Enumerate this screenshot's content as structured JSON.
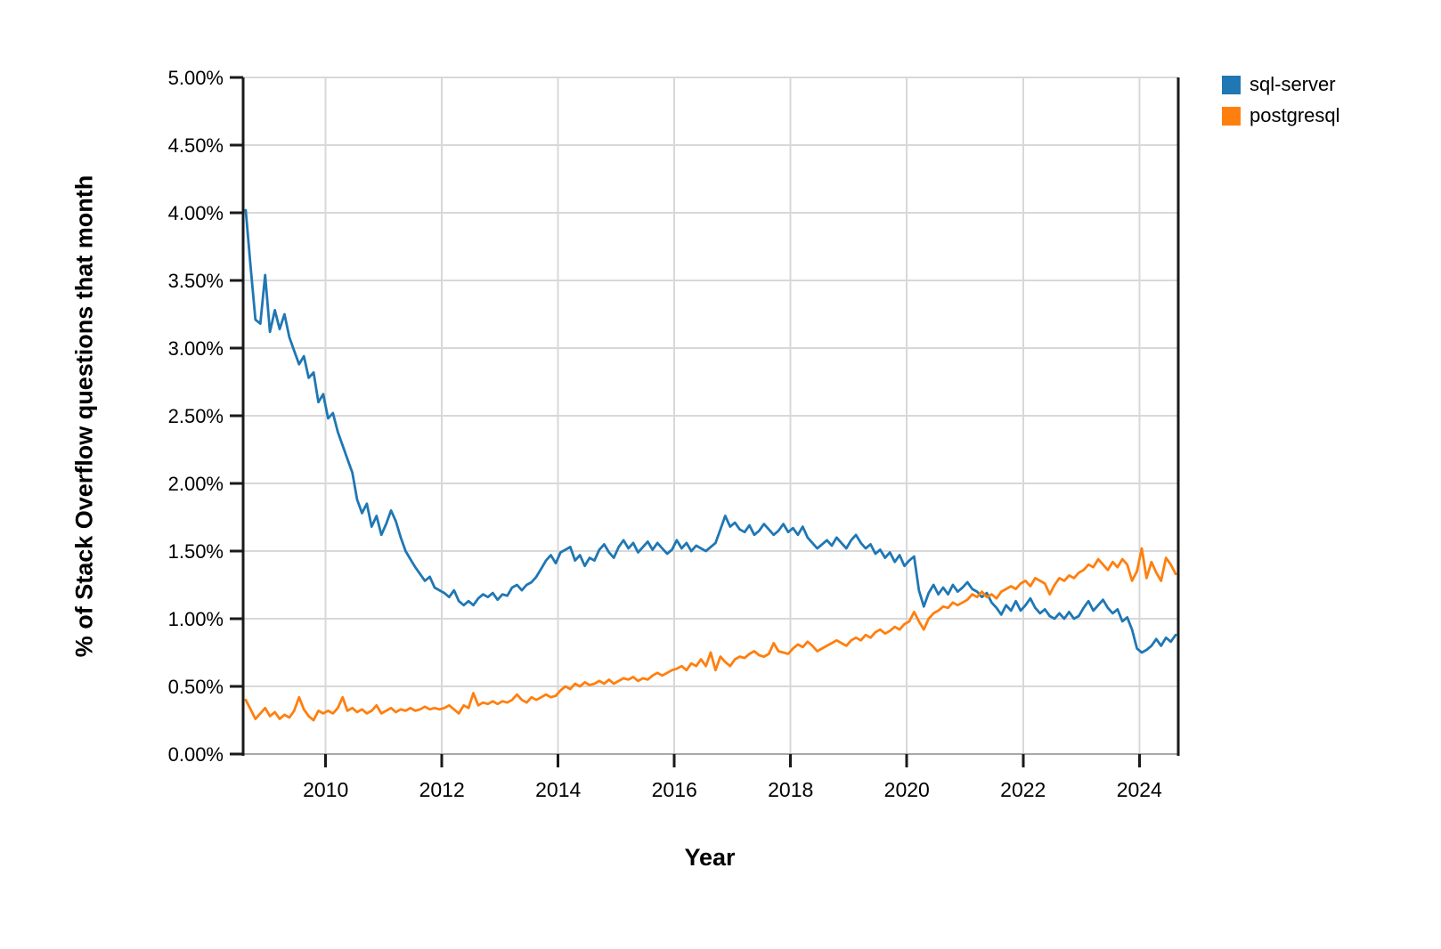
{
  "chart_data": {
    "type": "line",
    "xlabel": "Year",
    "ylabel": "% of Stack Overflow questions that month",
    "xlim": [
      2008.58,
      2024.67
    ],
    "ylim": [
      0,
      5
    ],
    "grid": true,
    "legend_position": "outside-top-right",
    "x_start": "2008-08",
    "x_step": "month",
    "xtick_values": [
      2010,
      2012,
      2014,
      2016,
      2018,
      2020,
      2022,
      2024
    ],
    "xtick_labels": [
      "2010",
      "2012",
      "2014",
      "2016",
      "2018",
      "2020",
      "2022",
      "2024"
    ],
    "ytick_values": [
      0,
      0.5,
      1,
      1.5,
      2,
      2.5,
      3,
      3.5,
      4,
      4.5,
      5
    ],
    "ytick_labels": [
      "0.00%",
      "0.50%",
      "1.00%",
      "1.50%",
      "2.00%",
      "2.50%",
      "3.00%",
      "3.50%",
      "4.00%",
      "4.50%",
      "5.00%"
    ],
    "colors": {
      "grid": "#d8d8d8",
      "zero_line": "#a8a8a8",
      "frame": "#1a1a1a",
      "text": "#000000"
    },
    "series": [
      {
        "name": "sql-server",
        "color": "#1f77b4",
        "values": [
          4.02,
          3.6,
          3.21,
          3.18,
          3.54,
          3.12,
          3.28,
          3.14,
          3.25,
          3.08,
          2.98,
          2.88,
          2.94,
          2.78,
          2.82,
          2.6,
          2.66,
          2.48,
          2.52,
          2.38,
          2.28,
          2.18,
          2.08,
          1.88,
          1.78,
          1.85,
          1.68,
          1.76,
          1.62,
          1.7,
          1.8,
          1.72,
          1.6,
          1.5,
          1.44,
          1.38,
          1.33,
          1.28,
          1.31,
          1.23,
          1.21,
          1.19,
          1.16,
          1.21,
          1.13,
          1.1,
          1.13,
          1.1,
          1.15,
          1.18,
          1.16,
          1.19,
          1.14,
          1.18,
          1.17,
          1.23,
          1.25,
          1.21,
          1.25,
          1.27,
          1.31,
          1.37,
          1.43,
          1.47,
          1.41,
          1.49,
          1.51,
          1.53,
          1.43,
          1.47,
          1.39,
          1.45,
          1.43,
          1.51,
          1.55,
          1.49,
          1.45,
          1.53,
          1.58,
          1.52,
          1.56,
          1.49,
          1.53,
          1.57,
          1.51,
          1.56,
          1.52,
          1.48,
          1.51,
          1.58,
          1.52,
          1.56,
          1.5,
          1.54,
          1.52,
          1.5,
          1.53,
          1.56,
          1.66,
          1.76,
          1.68,
          1.71,
          1.66,
          1.64,
          1.69,
          1.62,
          1.65,
          1.7,
          1.66,
          1.62,
          1.65,
          1.7,
          1.64,
          1.67,
          1.62,
          1.68,
          1.6,
          1.56,
          1.52,
          1.55,
          1.58,
          1.54,
          1.6,
          1.56,
          1.52,
          1.58,
          1.62,
          1.56,
          1.52,
          1.55,
          1.48,
          1.51,
          1.45,
          1.49,
          1.42,
          1.47,
          1.39,
          1.43,
          1.46,
          1.21,
          1.09,
          1.19,
          1.25,
          1.18,
          1.23,
          1.18,
          1.25,
          1.2,
          1.23,
          1.27,
          1.22,
          1.2,
          1.16,
          1.19,
          1.12,
          1.08,
          1.03,
          1.1,
          1.06,
          1.13,
          1.06,
          1.1,
          1.15,
          1.08,
          1.04,
          1.07,
          1.02,
          1.0,
          1.04,
          1.0,
          1.05,
          1.0,
          1.02,
          1.08,
          1.13,
          1.06,
          1.1,
          1.14,
          1.08,
          1.04,
          1.07,
          0.98,
          1.01,
          0.92,
          0.78,
          0.75,
          0.77,
          0.8,
          0.85,
          0.8,
          0.86,
          0.83,
          0.88
        ]
      },
      {
        "name": "postgresql",
        "color": "#ff7f0e",
        "values": [
          0.4,
          0.33,
          0.26,
          0.3,
          0.34,
          0.28,
          0.31,
          0.26,
          0.29,
          0.27,
          0.32,
          0.42,
          0.33,
          0.28,
          0.25,
          0.32,
          0.3,
          0.32,
          0.3,
          0.34,
          0.42,
          0.32,
          0.34,
          0.31,
          0.33,
          0.3,
          0.32,
          0.36,
          0.3,
          0.32,
          0.34,
          0.31,
          0.33,
          0.32,
          0.34,
          0.32,
          0.33,
          0.35,
          0.33,
          0.34,
          0.33,
          0.34,
          0.36,
          0.33,
          0.3,
          0.36,
          0.34,
          0.45,
          0.36,
          0.38,
          0.37,
          0.39,
          0.37,
          0.39,
          0.38,
          0.4,
          0.44,
          0.4,
          0.38,
          0.42,
          0.4,
          0.42,
          0.44,
          0.42,
          0.43,
          0.47,
          0.5,
          0.48,
          0.52,
          0.5,
          0.53,
          0.51,
          0.52,
          0.54,
          0.52,
          0.55,
          0.52,
          0.54,
          0.56,
          0.55,
          0.57,
          0.54,
          0.56,
          0.55,
          0.58,
          0.6,
          0.58,
          0.6,
          0.62,
          0.63,
          0.65,
          0.62,
          0.67,
          0.65,
          0.7,
          0.65,
          0.75,
          0.62,
          0.72,
          0.68,
          0.65,
          0.7,
          0.72,
          0.71,
          0.74,
          0.76,
          0.73,
          0.72,
          0.74,
          0.82,
          0.76,
          0.75,
          0.74,
          0.78,
          0.81,
          0.79,
          0.83,
          0.8,
          0.76,
          0.78,
          0.8,
          0.82,
          0.84,
          0.82,
          0.8,
          0.84,
          0.86,
          0.84,
          0.88,
          0.86,
          0.9,
          0.92,
          0.89,
          0.91,
          0.94,
          0.92,
          0.96,
          0.98,
          1.05,
          0.98,
          0.92,
          1.0,
          1.04,
          1.06,
          1.09,
          1.08,
          1.12,
          1.1,
          1.12,
          1.14,
          1.18,
          1.16,
          1.2,
          1.16,
          1.18,
          1.15,
          1.2,
          1.22,
          1.24,
          1.22,
          1.26,
          1.28,
          1.24,
          1.3,
          1.28,
          1.26,
          1.18,
          1.25,
          1.3,
          1.28,
          1.32,
          1.3,
          1.34,
          1.36,
          1.4,
          1.38,
          1.44,
          1.4,
          1.36,
          1.42,
          1.38,
          1.44,
          1.4,
          1.28,
          1.35,
          1.52,
          1.3,
          1.42,
          1.34,
          1.28,
          1.45,
          1.4,
          1.33
        ]
      }
    ]
  }
}
